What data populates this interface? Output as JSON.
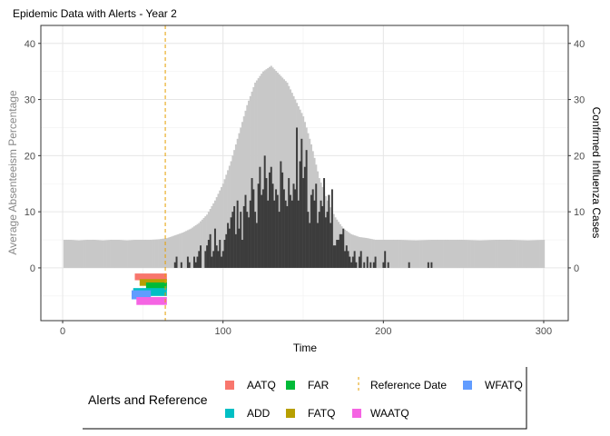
{
  "chart_data": {
    "type": "bar",
    "title": "Epidemic Data with Alerts - Year 2",
    "xlabel": "Time",
    "ylabel_left": "Average Absenteeism Percentage",
    "ylabel_right": "Confirmed Influenza Cases",
    "xlim": [
      -13.6,
      315.3
    ],
    "ylim": [
      -9.4,
      43.2
    ],
    "x_ticks": [
      0,
      100,
      200,
      300
    ],
    "y_ticks_left": [
      0,
      10,
      20,
      30,
      40
    ],
    "y_ticks_right": [
      0,
      10,
      20,
      30,
      40
    ],
    "grid": true,
    "colors": {
      "absenteeism": "#c8c8c8",
      "cases": "#3c3c3c",
      "reference": "#E69F00",
      "AATQ": "#F8766D",
      "FATQ": "#B79F00",
      "FAR": "#00BA38",
      "ADD": "#00BFC4",
      "WFATQ": "#619CFF",
      "WAATQ": "#F564E3"
    },
    "absenteeism": {
      "x": [
        1,
        5,
        10,
        15,
        20,
        25,
        30,
        35,
        40,
        45,
        50,
        55,
        60,
        65,
        70,
        75,
        80,
        85,
        90,
        95,
        100,
        105,
        110,
        115,
        120,
        125,
        130,
        135,
        140,
        145,
        150,
        155,
        160,
        165,
        170,
        175,
        180,
        185,
        190,
        195,
        200,
        210,
        220,
        230,
        240,
        250,
        260,
        270,
        280,
        290,
        300
      ],
      "y": [
        5,
        5,
        4.9,
        5,
        5,
        4.9,
        5,
        5,
        4.9,
        5,
        5,
        5,
        5.1,
        5.3,
        5.8,
        6.3,
        7,
        8,
        9.5,
        12,
        15,
        19,
        24,
        29,
        33,
        35,
        36,
        34.5,
        33,
        30,
        27,
        22,
        16,
        12,
        9,
        7,
        6,
        5.5,
        5.3,
        5,
        5,
        5,
        4.9,
        5,
        5,
        5,
        4.9,
        5,
        5,
        4.9,
        5
      ]
    },
    "cases": {
      "start_day": 70,
      "values": [
        1,
        2,
        0,
        0,
        1,
        0,
        0,
        0,
        2,
        1,
        0,
        0,
        2,
        1,
        2,
        3,
        4,
        0,
        0,
        3,
        4,
        5,
        6,
        2,
        3,
        7,
        4,
        3,
        5,
        2,
        3,
        5,
        6,
        8,
        7,
        9,
        10,
        11,
        6,
        12,
        7,
        10,
        5,
        11,
        13,
        10,
        9,
        12,
        16,
        14,
        10,
        8,
        15,
        18,
        13,
        14,
        20,
        16,
        12,
        17,
        18,
        15,
        12,
        14,
        13,
        10,
        19,
        17,
        14,
        12,
        11,
        16,
        13,
        12,
        15,
        14,
        25,
        12,
        19,
        23,
        16,
        18,
        21,
        10,
        8,
        13,
        14,
        12,
        15,
        8,
        10,
        12,
        11,
        16,
        9,
        10,
        13,
        8,
        14,
        4,
        4,
        5,
        5,
        6,
        6,
        7,
        3,
        4,
        3,
        2,
        1,
        2,
        3,
        1,
        0,
        2,
        3,
        0,
        1,
        0,
        2,
        0,
        1,
        0,
        1,
        2,
        0,
        0,
        0,
        0,
        1,
        3,
        0,
        1,
        0,
        0,
        0,
        0,
        0,
        0,
        0,
        0,
        0,
        0,
        0,
        0,
        1,
        0,
        0,
        0,
        0,
        0,
        0,
        0,
        0,
        0,
        0,
        0,
        1,
        0,
        1,
        0,
        0,
        0,
        0,
        0,
        0,
        0,
        0,
        0,
        0
      ]
    },
    "reference_date": 64,
    "alerts": [
      {
        "name": "AATQ",
        "x": [
          45,
          65
        ],
        "y": [
          -1,
          -2.2
        ]
      },
      {
        "name": "FATQ",
        "x": [
          48,
          65
        ],
        "y": [
          -2,
          -3.2
        ]
      },
      {
        "name": "FAR",
        "x": [
          52,
          65
        ],
        "y": [
          -2.6,
          -4
        ]
      },
      {
        "name": "ADD",
        "x": [
          44,
          65
        ],
        "y": [
          -3.6,
          -5
        ]
      },
      {
        "name": "WFATQ",
        "x": [
          43,
          55
        ],
        "y": [
          -4,
          -5.6
        ]
      },
      {
        "name": "WAATQ",
        "x": [
          46,
          65
        ],
        "y": [
          -5.2,
          -6.6
        ]
      }
    ],
    "legend": {
      "title": "Alerts and Reference",
      "position": "bottom",
      "items": [
        {
          "label": "AATQ",
          "kind": "square"
        },
        {
          "label": "ADD",
          "kind": "square"
        },
        {
          "label": "FAR",
          "kind": "square"
        },
        {
          "label": "FATQ",
          "kind": "square"
        },
        {
          "label": "Reference Date",
          "kind": "dashed-line"
        },
        {
          "label": "WAATQ",
          "kind": "square"
        },
        {
          "label": "WFATQ",
          "kind": "square"
        }
      ]
    }
  }
}
